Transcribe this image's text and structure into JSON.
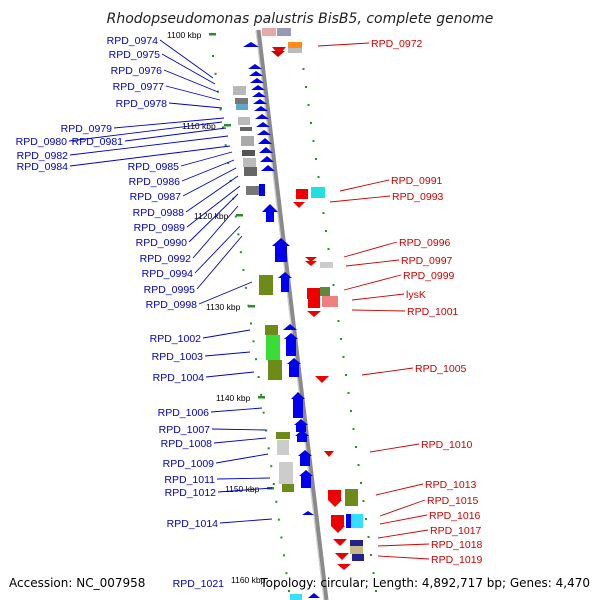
{
  "title": "Rhodopseudomonas palustris BisB5, complete genome",
  "footer": {
    "accession": "Accession: NC_007958",
    "topology": "Topology: circular; Length: 4,892,717 bp; Genes: 4,470"
  },
  "scale_labels": [
    "1100 kbp",
    "1110 kbp",
    "1120 kbp",
    "1130 kbp",
    "1140 kbp",
    "1150 kbp",
    "1160 kbp"
  ],
  "left_genes": [
    "RPD_0974",
    "RPD_0975",
    "RPD_0976",
    "RPD_0977",
    "RPD_0978",
    "RPD_0979",
    "RPD_0980",
    "RPD_0981",
    "RPD_0982",
    "RPD_0984",
    "RPD_0985",
    "RPD_0986",
    "RPD_0987",
    "RPD_0988",
    "RPD_0989",
    "RPD_0990",
    "RPD_0992",
    "RPD_0994",
    "RPD_0995",
    "RPD_0998",
    "RPD_1002",
    "RPD_1003",
    "RPD_1004",
    "RPD_1006",
    "RPD_1007",
    "RPD_1008",
    "RPD_1009",
    "RPD_1011",
    "RPD_1012",
    "RPD_1014",
    "RPD_1021"
  ],
  "right_genes": [
    "RPD_0972",
    "RPD_0991",
    "RPD_0993",
    "RPD_0996",
    "RPD_0997",
    "RPD_0999",
    "lysK",
    "RPD_1001",
    "RPD_1005",
    "RPD_1010",
    "RPD_1013",
    "RPD_1015",
    "RPD_1016",
    "RPD_1017",
    "RPD_1018",
    "RPD_1019"
  ],
  "colors": {
    "forward_strand": "#0000ee",
    "reverse_strand": "#ee0000",
    "backbone": "#888888",
    "tick": "#2e8b2e",
    "label_blue": "#0000c8",
    "label_red": "#d00000"
  }
}
